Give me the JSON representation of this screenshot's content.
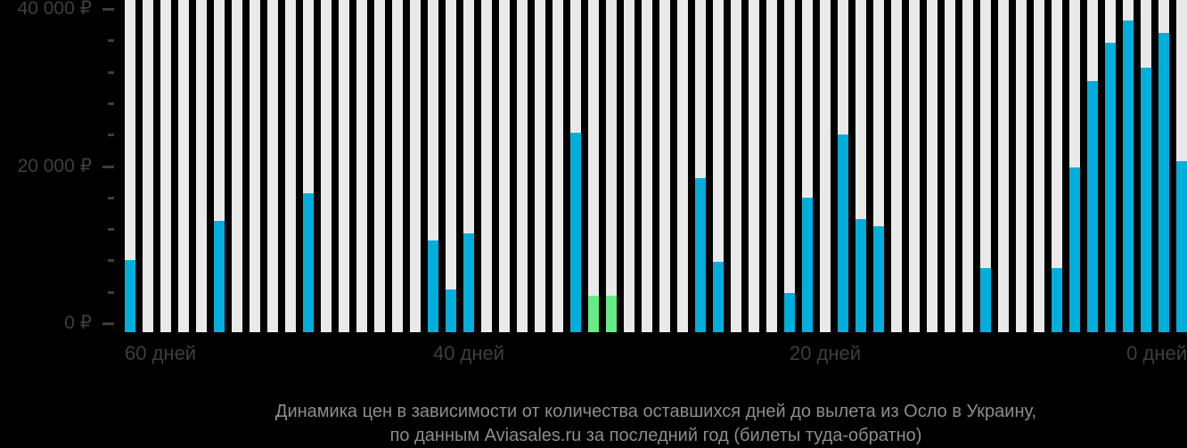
{
  "chart_data": {
    "type": "bar",
    "title_line1": "Динамика цен в зависимости от количества оставшихся дней до вылета из Осло в Украину,",
    "title_line2": "по данным Aviasales.ru за последний год (билеты туда-обратно)",
    "y_axis": {
      "max": 40000,
      "minor_step": 4000,
      "labels": [
        {
          "value": 0,
          "label": "0 ₽"
        },
        {
          "value": 20000,
          "label": "20 000 ₽"
        },
        {
          "value": 40000,
          "label": "40 000 ₽"
        }
      ]
    },
    "x_axis": {
      "labels": [
        {
          "day": 60,
          "label": "60 дней"
        },
        {
          "day": 40,
          "label": "40 дней"
        },
        {
          "day": 20,
          "label": "20 дней"
        },
        {
          "day": 0,
          "label": "0 дней"
        }
      ]
    },
    "legend": "none",
    "grid": "off",
    "bars": [
      {
        "day": 59,
        "value": 8000,
        "color": "blue"
      },
      {
        "day": 58,
        "value": null
      },
      {
        "day": 57,
        "value": null
      },
      {
        "day": 56,
        "value": null
      },
      {
        "day": 55,
        "value": null
      },
      {
        "day": 54,
        "value": 13000,
        "color": "blue"
      },
      {
        "day": 53,
        "value": null
      },
      {
        "day": 52,
        "value": null
      },
      {
        "day": 51,
        "value": null
      },
      {
        "day": 50,
        "value": null
      },
      {
        "day": 49,
        "value": 16500,
        "color": "blue"
      },
      {
        "day": 48,
        "value": null
      },
      {
        "day": 47,
        "value": null
      },
      {
        "day": 46,
        "value": null
      },
      {
        "day": 45,
        "value": null
      },
      {
        "day": 44,
        "value": null
      },
      {
        "day": 43,
        "value": null
      },
      {
        "day": 42,
        "value": 10500,
        "color": "blue"
      },
      {
        "day": 41,
        "value": 4300,
        "color": "blue"
      },
      {
        "day": 40,
        "value": 11500,
        "color": "blue"
      },
      {
        "day": 39,
        "value": null
      },
      {
        "day": 38,
        "value": null
      },
      {
        "day": 37,
        "value": null
      },
      {
        "day": 36,
        "value": null
      },
      {
        "day": 35,
        "value": null
      },
      {
        "day": 34,
        "value": 24300,
        "color": "blue"
      },
      {
        "day": 33,
        "value": 3500,
        "color": "green"
      },
      {
        "day": 32,
        "value": 3500,
        "color": "green"
      },
      {
        "day": 31,
        "value": null
      },
      {
        "day": 30,
        "value": null
      },
      {
        "day": 29,
        "value": null
      },
      {
        "day": 28,
        "value": null
      },
      {
        "day": 27,
        "value": 18500,
        "color": "blue"
      },
      {
        "day": 26,
        "value": 7800,
        "color": "blue"
      },
      {
        "day": 25,
        "value": null
      },
      {
        "day": 24,
        "value": null
      },
      {
        "day": 23,
        "value": null
      },
      {
        "day": 22,
        "value": 3800,
        "color": "blue"
      },
      {
        "day": 21,
        "value": 16000,
        "color": "blue"
      },
      {
        "day": 20,
        "value": null
      },
      {
        "day": 19,
        "value": 24000,
        "color": "blue"
      },
      {
        "day": 18,
        "value": 13300,
        "color": "blue"
      },
      {
        "day": 17,
        "value": 12300,
        "color": "blue"
      },
      {
        "day": 16,
        "value": null
      },
      {
        "day": 15,
        "value": null
      },
      {
        "day": 14,
        "value": null
      },
      {
        "day": 13,
        "value": null
      },
      {
        "day": 12,
        "value": null
      },
      {
        "day": 11,
        "value": 7000,
        "color": "blue"
      },
      {
        "day": 10,
        "value": null
      },
      {
        "day": 9,
        "value": null
      },
      {
        "day": 8,
        "value": null
      },
      {
        "day": 7,
        "value": 7000,
        "color": "blue"
      },
      {
        "day": 6,
        "value": 19800,
        "color": "blue"
      },
      {
        "day": 5,
        "value": 30800,
        "color": "blue"
      },
      {
        "day": 4,
        "value": 35700,
        "color": "blue"
      },
      {
        "day": 3,
        "value": 38500,
        "color": "blue"
      },
      {
        "day": 2,
        "value": 32500,
        "color": "blue"
      },
      {
        "day": 1,
        "value": 36900,
        "color": "blue"
      },
      {
        "day": 0,
        "value": 20600,
        "color": "blue"
      }
    ],
    "colors": {
      "bar_blue": "#00AEDB",
      "bar_green": "#66EB85",
      "bar_track": "#E9E9E9",
      "background": "#000000",
      "axis_text": "#3E3E3E",
      "title_text": "#8D8D8D"
    }
  }
}
